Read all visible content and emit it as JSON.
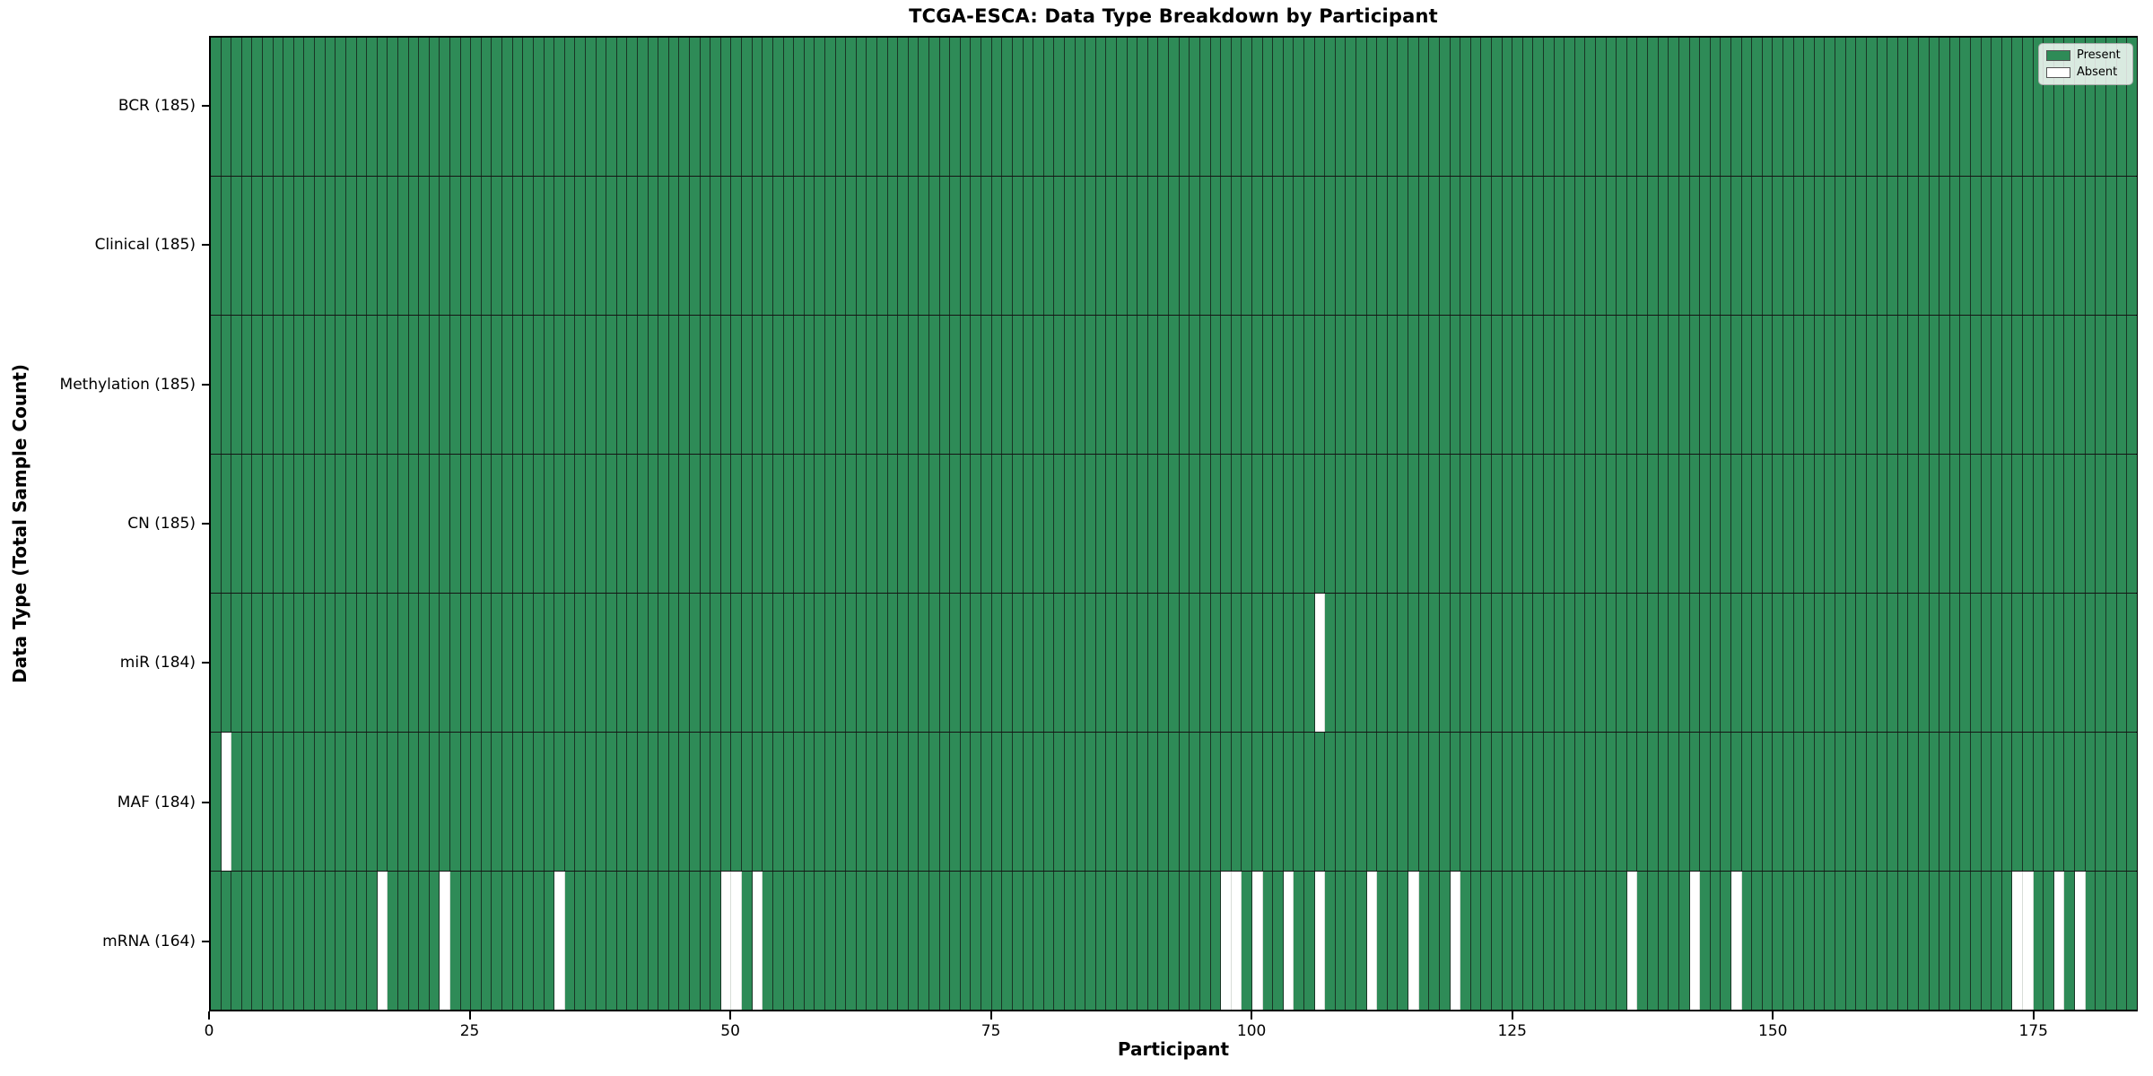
{
  "chart_data": {
    "type": "heatmap",
    "title": "TCGA-ESCA: Data Type Breakdown by Participant",
    "xlabel": "Participant",
    "ylabel": "Data Type (Total Sample Count)",
    "n_participants": 185,
    "x_ticks": [
      0,
      25,
      50,
      75,
      100,
      125,
      150,
      175
    ],
    "rows": [
      {
        "name": "BCR",
        "label": "BCR (185)",
        "count": 185,
        "absent": []
      },
      {
        "name": "Clinical",
        "label": "Clinical (185)",
        "count": 185,
        "absent": []
      },
      {
        "name": "Methylation",
        "label": "Methylation (185)",
        "count": 185,
        "absent": []
      },
      {
        "name": "CN",
        "label": "CN (185)",
        "count": 185,
        "absent": []
      },
      {
        "name": "miR",
        "label": "miR (184)",
        "count": 184,
        "absent": [
          106
        ]
      },
      {
        "name": "MAF",
        "label": "MAF (184)",
        "count": 184,
        "absent": [
          1
        ]
      },
      {
        "name": "mRNA",
        "label": "mRNA (164)",
        "count": 164,
        "absent": [
          16,
          22,
          33,
          49,
          50,
          52,
          97,
          98,
          100,
          103,
          106,
          111,
          115,
          119,
          136,
          142,
          146,
          173,
          174,
          177,
          179
        ]
      }
    ],
    "legend": [
      {
        "label": "Present",
        "color": "#2e8b57"
      },
      {
        "label": "Absent",
        "color": "#ffffff"
      }
    ],
    "legend_position": "upper right",
    "grid": false,
    "colors": {
      "present": "#2e8b57",
      "absent": "#ffffff",
      "bar_edge": "#141414"
    }
  }
}
